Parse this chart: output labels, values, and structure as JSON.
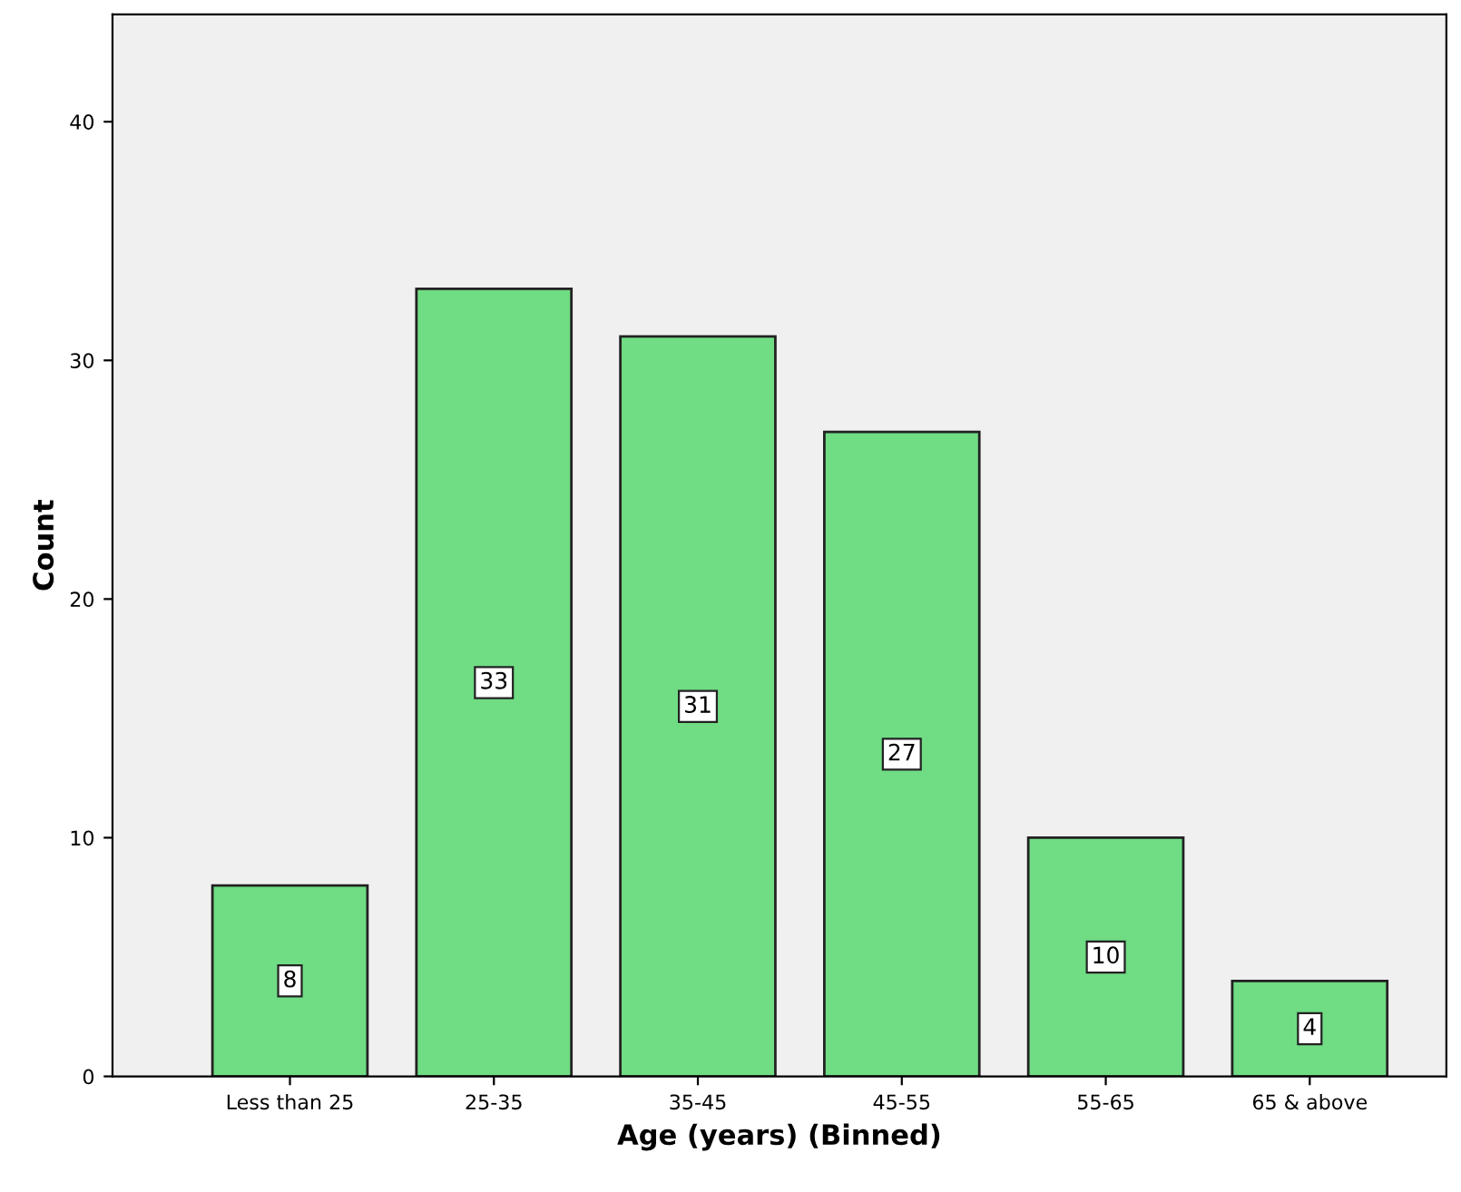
{
  "chart_data": {
    "type": "bar",
    "xlabel": "Age (years) (Binned)",
    "ylabel": "Count",
    "categories": [
      "Less than 25",
      "25-35",
      "35-45",
      "45-55",
      "55-65",
      "65 & above"
    ],
    "values": [
      8,
      33,
      31,
      27,
      10,
      4
    ],
    "color": "#70dc84",
    "ylim": [
      0,
      44.5
    ],
    "yticks": [
      0,
      10,
      20,
      30,
      40
    ],
    "grid": false,
    "data_labels": true
  }
}
